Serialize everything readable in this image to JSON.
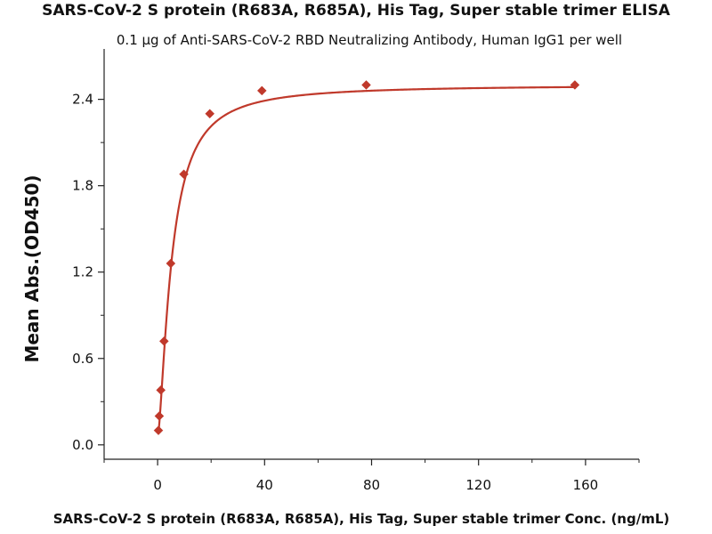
{
  "chart_data": {
    "type": "scatter",
    "title": "SARS-CoV-2 S protein (R683A, R685A), His Tag, Super stable trimer ELISA",
    "subtitle": "0.1 µg of Anti-SARS-CoV-2 RBD Neutralizing Antibody, Human IgG1 per well",
    "xlabel": "SARS-CoV-2 S protein (R683A, R685A), His Tag, Super stable trimer Conc. (ng/mL)",
    "ylabel": "Mean Abs.(OD450)",
    "xlim": [
      -20,
      180
    ],
    "ylim": [
      -0.1,
      2.75
    ],
    "xticks": [
      0,
      40,
      80,
      120,
      160
    ],
    "yticks": [
      0.0,
      0.6,
      1.2,
      1.8,
      2.4
    ],
    "xtick_labels": [
      "0",
      "40",
      "80",
      "120",
      "160"
    ],
    "ytick_labels": [
      "0.0",
      "0.6",
      "1.2",
      "1.8",
      "2.4"
    ],
    "series": [
      {
        "name": "Mean Abs.(OD450)",
        "color": "#c0392b",
        "marker": "diamond",
        "points": [
          {
            "x": 0.3,
            "y": 0.1
          },
          {
            "x": 0.6,
            "y": 0.2
          },
          {
            "x": 1.2,
            "y": 0.38
          },
          {
            "x": 2.4,
            "y": 0.72
          },
          {
            "x": 4.9,
            "y": 1.26
          },
          {
            "x": 9.8,
            "y": 1.88
          },
          {
            "x": 19.5,
            "y": 2.3
          },
          {
            "x": 39,
            "y": 2.46
          },
          {
            "x": 78,
            "y": 2.5
          },
          {
            "x": 156,
            "y": 2.5
          }
        ],
        "fit_curve": {
          "type": "4PL",
          "bottom": 0.05,
          "top": 2.5,
          "ec50": 5.2,
          "hill": 1.5
        }
      }
    ]
  }
}
